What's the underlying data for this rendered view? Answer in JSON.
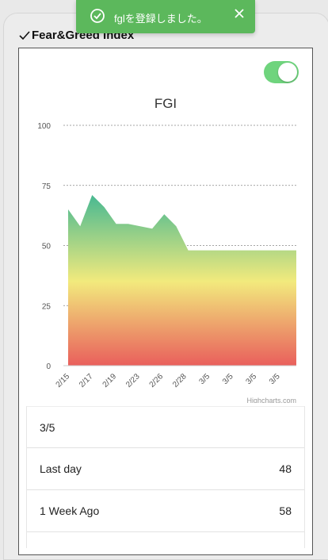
{
  "toast": {
    "message": "fglを登録しました。",
    "icon": "check-circle-icon",
    "close_icon": "close-icon"
  },
  "section": {
    "title": "Fear&Greed Index"
  },
  "toggle": {
    "state": "on",
    "color": "#6fd47d"
  },
  "stats": [
    {
      "label": "3/5",
      "value": ""
    },
    {
      "label": "Last day",
      "value": "48"
    },
    {
      "label": "1 Week Ago",
      "value": "58"
    }
  ],
  "chart_data": {
    "type": "area",
    "title": "FGI",
    "credits": "Highcharts.com",
    "xlabel": "",
    "ylabel": "",
    "ylim": [
      0,
      100
    ],
    "y_ticks": [
      "0",
      "25",
      "50",
      "75",
      "100"
    ],
    "x_tick_labels": [
      "2/15",
      "2/17",
      "2/19",
      "2/23",
      "2/26",
      "2/28",
      "3/5",
      "3/5",
      "3/5",
      "3/5"
    ],
    "grid": true,
    "fill_gradient": [
      "#4dba91",
      "#f2ea7d",
      "#e95f5c"
    ],
    "series": [
      {
        "values": [
          65,
          58,
          71,
          66,
          59,
          59,
          58,
          57,
          63,
          58,
          48,
          48,
          48,
          48,
          48,
          48,
          48,
          48,
          48,
          48
        ]
      }
    ]
  }
}
